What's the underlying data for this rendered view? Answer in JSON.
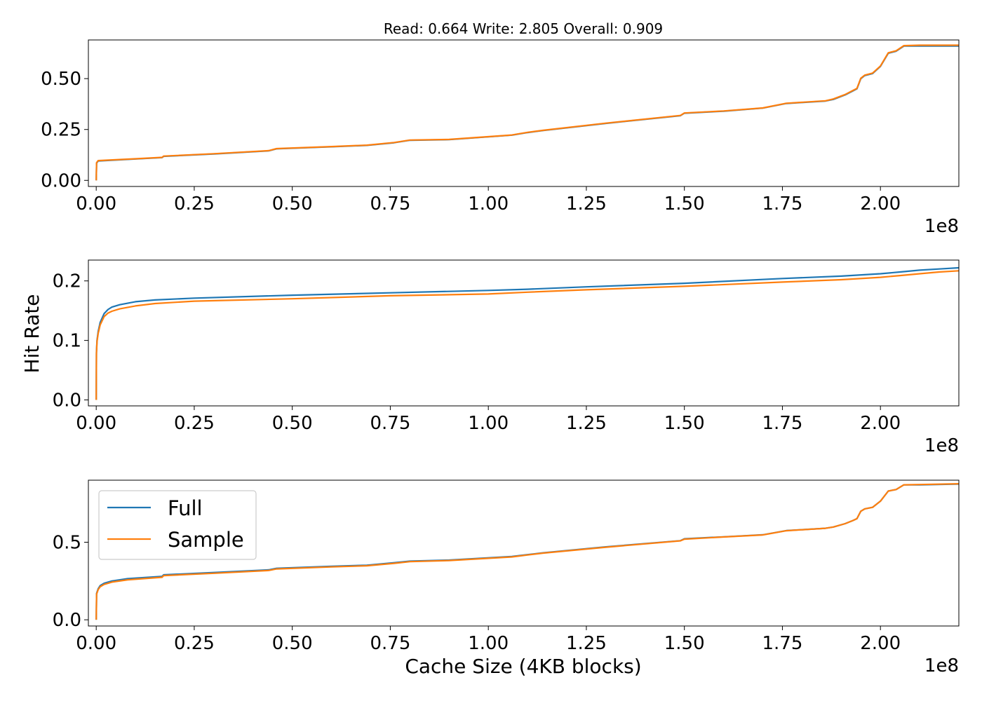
{
  "figure": {
    "title": "Read: 0.664 Write: 2.805 Overall: 0.909",
    "xlabel": "Cache Size (4KB blocks)",
    "ylabel": "Hit Rate"
  },
  "colors": {
    "full": "#1f77b4",
    "sample": "#ff7f0e"
  },
  "legend": {
    "placement": "upper-left",
    "entries": [
      "Full",
      "Sample"
    ]
  },
  "chart_data": [
    {
      "type": "line",
      "x_offset_label": "1e8",
      "xlim": [
        -0.02,
        2.2
      ],
      "ylim": [
        -0.03,
        0.69
      ],
      "xticks": [
        0.0,
        0.25,
        0.5,
        0.75,
        1.0,
        1.25,
        1.5,
        1.75,
        2.0
      ],
      "xtick_labels": [
        "0.00",
        "0.25",
        "0.50",
        "0.75",
        "1.00",
        "1.25",
        "1.50",
        "1.75",
        "2.00"
      ],
      "yticks": [
        0.0,
        0.25,
        0.5
      ],
      "ytick_labels": [
        "0.00",
        "0.25",
        "0.50"
      ],
      "series": [
        {
          "name": "Full",
          "x": [
            0,
            0.001,
            0.005,
            0.1,
            0.168,
            0.172,
            0.3,
            0.44,
            0.46,
            0.6,
            0.69,
            0.76,
            0.8,
            0.9,
            1.06,
            1.1,
            1.14,
            1.3,
            1.49,
            1.5,
            1.6,
            1.7,
            1.76,
            1.86,
            1.88,
            1.91,
            1.93,
            1.94,
            1.95,
            1.96,
            1.98,
            2.0,
            2.02,
            2.04,
            2.06,
            2.1,
            2.2
          ],
          "values": [
            0.0,
            0.085,
            0.095,
            0.105,
            0.112,
            0.118,
            0.13,
            0.145,
            0.155,
            0.165,
            0.172,
            0.185,
            0.197,
            0.2,
            0.222,
            0.235,
            0.245,
            0.28,
            0.318,
            0.33,
            0.34,
            0.355,
            0.378,
            0.39,
            0.398,
            0.42,
            0.44,
            0.45,
            0.5,
            0.515,
            0.525,
            0.56,
            0.625,
            0.635,
            0.66,
            0.66,
            0.66
          ]
        },
        {
          "name": "Sample",
          "x": [
            0,
            0.001,
            0.005,
            0.1,
            0.168,
            0.172,
            0.3,
            0.44,
            0.46,
            0.6,
            0.69,
            0.76,
            0.8,
            0.9,
            1.06,
            1.1,
            1.14,
            1.3,
            1.49,
            1.5,
            1.6,
            1.7,
            1.76,
            1.86,
            1.88,
            1.91,
            1.93,
            1.94,
            1.95,
            1.96,
            1.98,
            2.0,
            2.02,
            2.04,
            2.06,
            2.1,
            2.2
          ],
          "values": [
            0.0,
            0.087,
            0.097,
            0.106,
            0.113,
            0.119,
            0.131,
            0.146,
            0.156,
            0.166,
            0.173,
            0.186,
            0.198,
            0.201,
            0.223,
            0.236,
            0.246,
            0.281,
            0.319,
            0.331,
            0.341,
            0.356,
            0.379,
            0.391,
            0.4,
            0.422,
            0.442,
            0.452,
            0.502,
            0.517,
            0.527,
            0.562,
            0.627,
            0.637,
            0.662,
            0.664,
            0.664
          ]
        }
      ]
    },
    {
      "type": "line",
      "x_offset_label": "1e8",
      "xlim": [
        -0.02,
        2.2
      ],
      "ylim": [
        -0.01,
        0.235
      ],
      "xticks": [
        0.0,
        0.25,
        0.5,
        0.75,
        1.0,
        1.25,
        1.5,
        1.75,
        2.0
      ],
      "xtick_labels": [
        "0.00",
        "0.25",
        "0.50",
        "0.75",
        "1.00",
        "1.25",
        "1.50",
        "1.75",
        "2.00"
      ],
      "yticks": [
        0.0,
        0.1,
        0.2
      ],
      "ytick_labels": [
        "0.0",
        "0.1",
        "0.2"
      ],
      "series": [
        {
          "name": "Full",
          "x": [
            0,
            0.0005,
            0.002,
            0.005,
            0.01,
            0.02,
            0.03,
            0.04,
            0.06,
            0.1,
            0.15,
            0.25,
            0.5,
            0.75,
            1.0,
            1.1,
            1.25,
            1.5,
            1.75,
            1.9,
            2.0,
            2.05,
            2.1,
            2.15,
            2.2
          ],
          "values": [
            0.0,
            0.08,
            0.1,
            0.115,
            0.13,
            0.145,
            0.152,
            0.156,
            0.16,
            0.165,
            0.168,
            0.171,
            0.176,
            0.18,
            0.184,
            0.186,
            0.19,
            0.196,
            0.204,
            0.208,
            0.212,
            0.215,
            0.218,
            0.22,
            0.222
          ]
        },
        {
          "name": "Sample",
          "x": [
            0,
            0.0005,
            0.002,
            0.005,
            0.01,
            0.02,
            0.03,
            0.04,
            0.06,
            0.1,
            0.15,
            0.25,
            0.5,
            0.75,
            1.0,
            1.1,
            1.25,
            1.5,
            1.75,
            1.9,
            2.0,
            2.05,
            2.1,
            2.15,
            2.2
          ],
          "values": [
            0.0,
            0.078,
            0.098,
            0.112,
            0.126,
            0.14,
            0.146,
            0.149,
            0.153,
            0.158,
            0.162,
            0.166,
            0.17,
            0.175,
            0.178,
            0.181,
            0.185,
            0.191,
            0.198,
            0.202,
            0.206,
            0.209,
            0.212,
            0.215,
            0.217
          ]
        }
      ]
    },
    {
      "type": "line",
      "x_offset_label": "1e8",
      "xlim": [
        -0.02,
        2.2
      ],
      "ylim": [
        -0.04,
        0.9
      ],
      "xticks": [
        0.0,
        0.25,
        0.5,
        0.75,
        1.0,
        1.25,
        1.5,
        1.75,
        2.0
      ],
      "xtick_labels": [
        "0.00",
        "0.25",
        "0.50",
        "0.75",
        "1.00",
        "1.25",
        "1.50",
        "1.75",
        "2.00"
      ],
      "yticks": [
        0.0,
        0.5
      ],
      "ytick_labels": [
        "0.0",
        "0.5"
      ],
      "series": [
        {
          "name": "Full",
          "x": [
            0,
            0.001,
            0.005,
            0.01,
            0.02,
            0.04,
            0.08,
            0.168,
            0.172,
            0.3,
            0.44,
            0.46,
            0.6,
            0.69,
            0.76,
            0.8,
            0.9,
            1.06,
            1.1,
            1.14,
            1.3,
            1.49,
            1.5,
            1.6,
            1.7,
            1.76,
            1.86,
            1.88,
            1.91,
            1.93,
            1.94,
            1.95,
            1.96,
            1.98,
            2.0,
            2.02,
            2.04,
            2.06,
            2.1,
            2.2
          ],
          "values": [
            0.0,
            0.17,
            0.2,
            0.22,
            0.235,
            0.25,
            0.265,
            0.28,
            0.29,
            0.305,
            0.322,
            0.332,
            0.345,
            0.352,
            0.368,
            0.378,
            0.385,
            0.408,
            0.42,
            0.432,
            0.47,
            0.51,
            0.522,
            0.535,
            0.548,
            0.575,
            0.59,
            0.598,
            0.62,
            0.64,
            0.652,
            0.7,
            0.715,
            0.725,
            0.765,
            0.83,
            0.84,
            0.87,
            0.87,
            0.875
          ]
        },
        {
          "name": "Sample",
          "x": [
            0,
            0.001,
            0.005,
            0.01,
            0.02,
            0.04,
            0.08,
            0.168,
            0.172,
            0.3,
            0.44,
            0.46,
            0.6,
            0.69,
            0.76,
            0.8,
            0.9,
            1.06,
            1.1,
            1.14,
            1.3,
            1.49,
            1.5,
            1.6,
            1.7,
            1.76,
            1.86,
            1.88,
            1.91,
            1.93,
            1.94,
            1.95,
            1.96,
            1.98,
            2.0,
            2.02,
            2.04,
            2.06,
            2.1,
            2.2
          ],
          "values": [
            0.0,
            0.165,
            0.195,
            0.213,
            0.228,
            0.243,
            0.258,
            0.274,
            0.285,
            0.3,
            0.318,
            0.328,
            0.341,
            0.348,
            0.364,
            0.375,
            0.382,
            0.405,
            0.418,
            0.43,
            0.468,
            0.509,
            0.52,
            0.534,
            0.547,
            0.574,
            0.59,
            0.598,
            0.62,
            0.64,
            0.652,
            0.7,
            0.715,
            0.725,
            0.765,
            0.83,
            0.84,
            0.87,
            0.872,
            0.877
          ]
        }
      ]
    }
  ]
}
